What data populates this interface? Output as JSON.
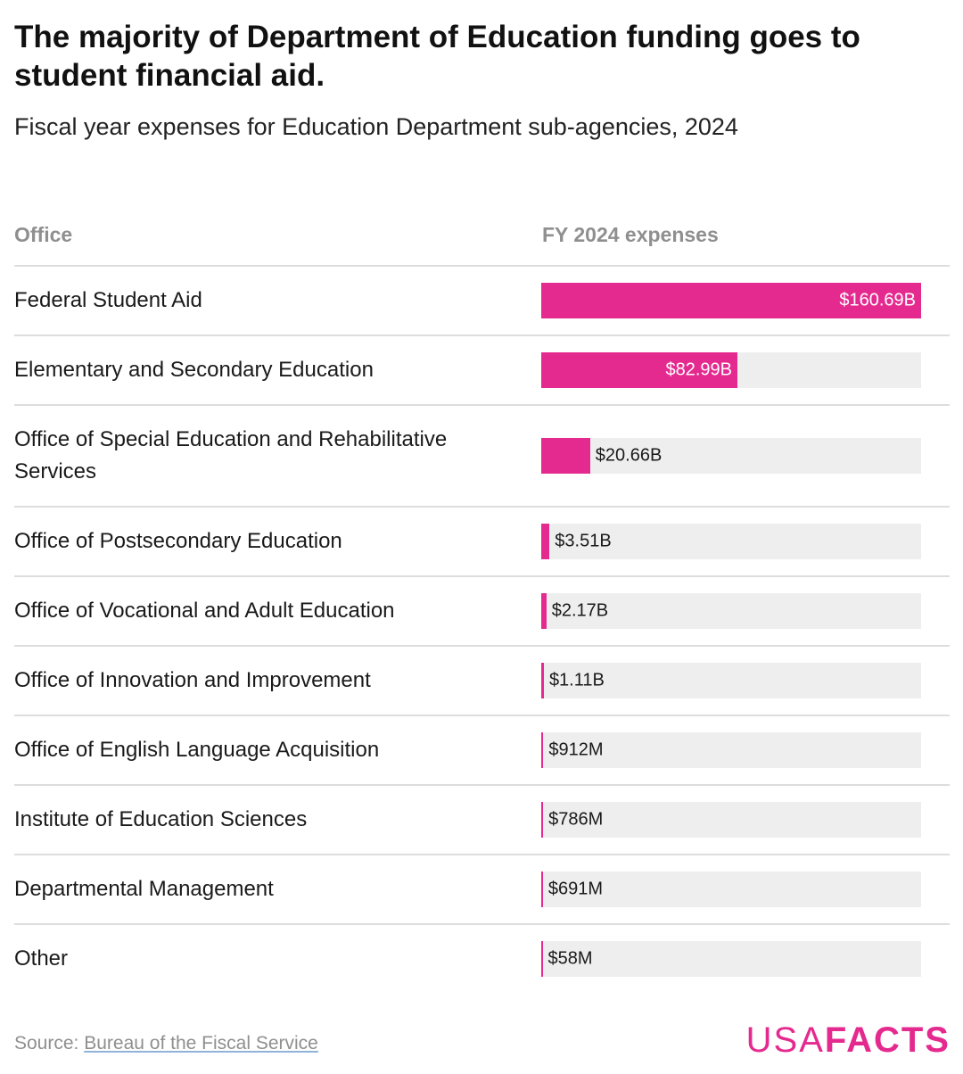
{
  "title": "The majority of Department of Education funding goes to student financial aid.",
  "subtitle": "Fiscal year expenses for Education Department sub-agencies, 2024",
  "columns": {
    "office": "Office",
    "expenses": "FY 2024 expenses"
  },
  "chart_data": {
    "type": "bar",
    "title": "The majority of Department of Education funding goes to student financial aid.",
    "subtitle": "Fiscal year expenses for Education Department sub-agencies, 2024",
    "categories": [
      "Federal Student Aid",
      "Elementary and Secondary Education",
      "Office of Special Education and Rehabilitative Services",
      "Office of Postsecondary Education",
      "Office of Vocational and Adult Education",
      "Office of Innovation and Improvement",
      "Office of English Language Acquisition",
      "Institute of Education Sciences",
      "Departmental Management",
      "Other"
    ],
    "values": [
      160.69,
      82.99,
      20.66,
      3.51,
      2.17,
      1.11,
      0.912,
      0.786,
      0.691,
      0.058
    ],
    "value_labels": [
      "$160.69B",
      "$82.99B",
      "$20.66B",
      "$3.51B",
      "$2.17B",
      "$1.11B",
      "$912M",
      "$786M",
      "$691M",
      "$58M"
    ],
    "unit": "billions USD",
    "xlim": [
      0,
      160.69
    ],
    "bar_color": "#e52a8f",
    "track_color": "#eeeeee"
  },
  "source": {
    "prefix": "Source: ",
    "link_text": "Bureau of the Fiscal Service"
  },
  "logo": {
    "usa": "USA",
    "facts": "FACTS"
  },
  "colors": {
    "accent": "#e52a8f",
    "muted": "#8f8f8f"
  }
}
